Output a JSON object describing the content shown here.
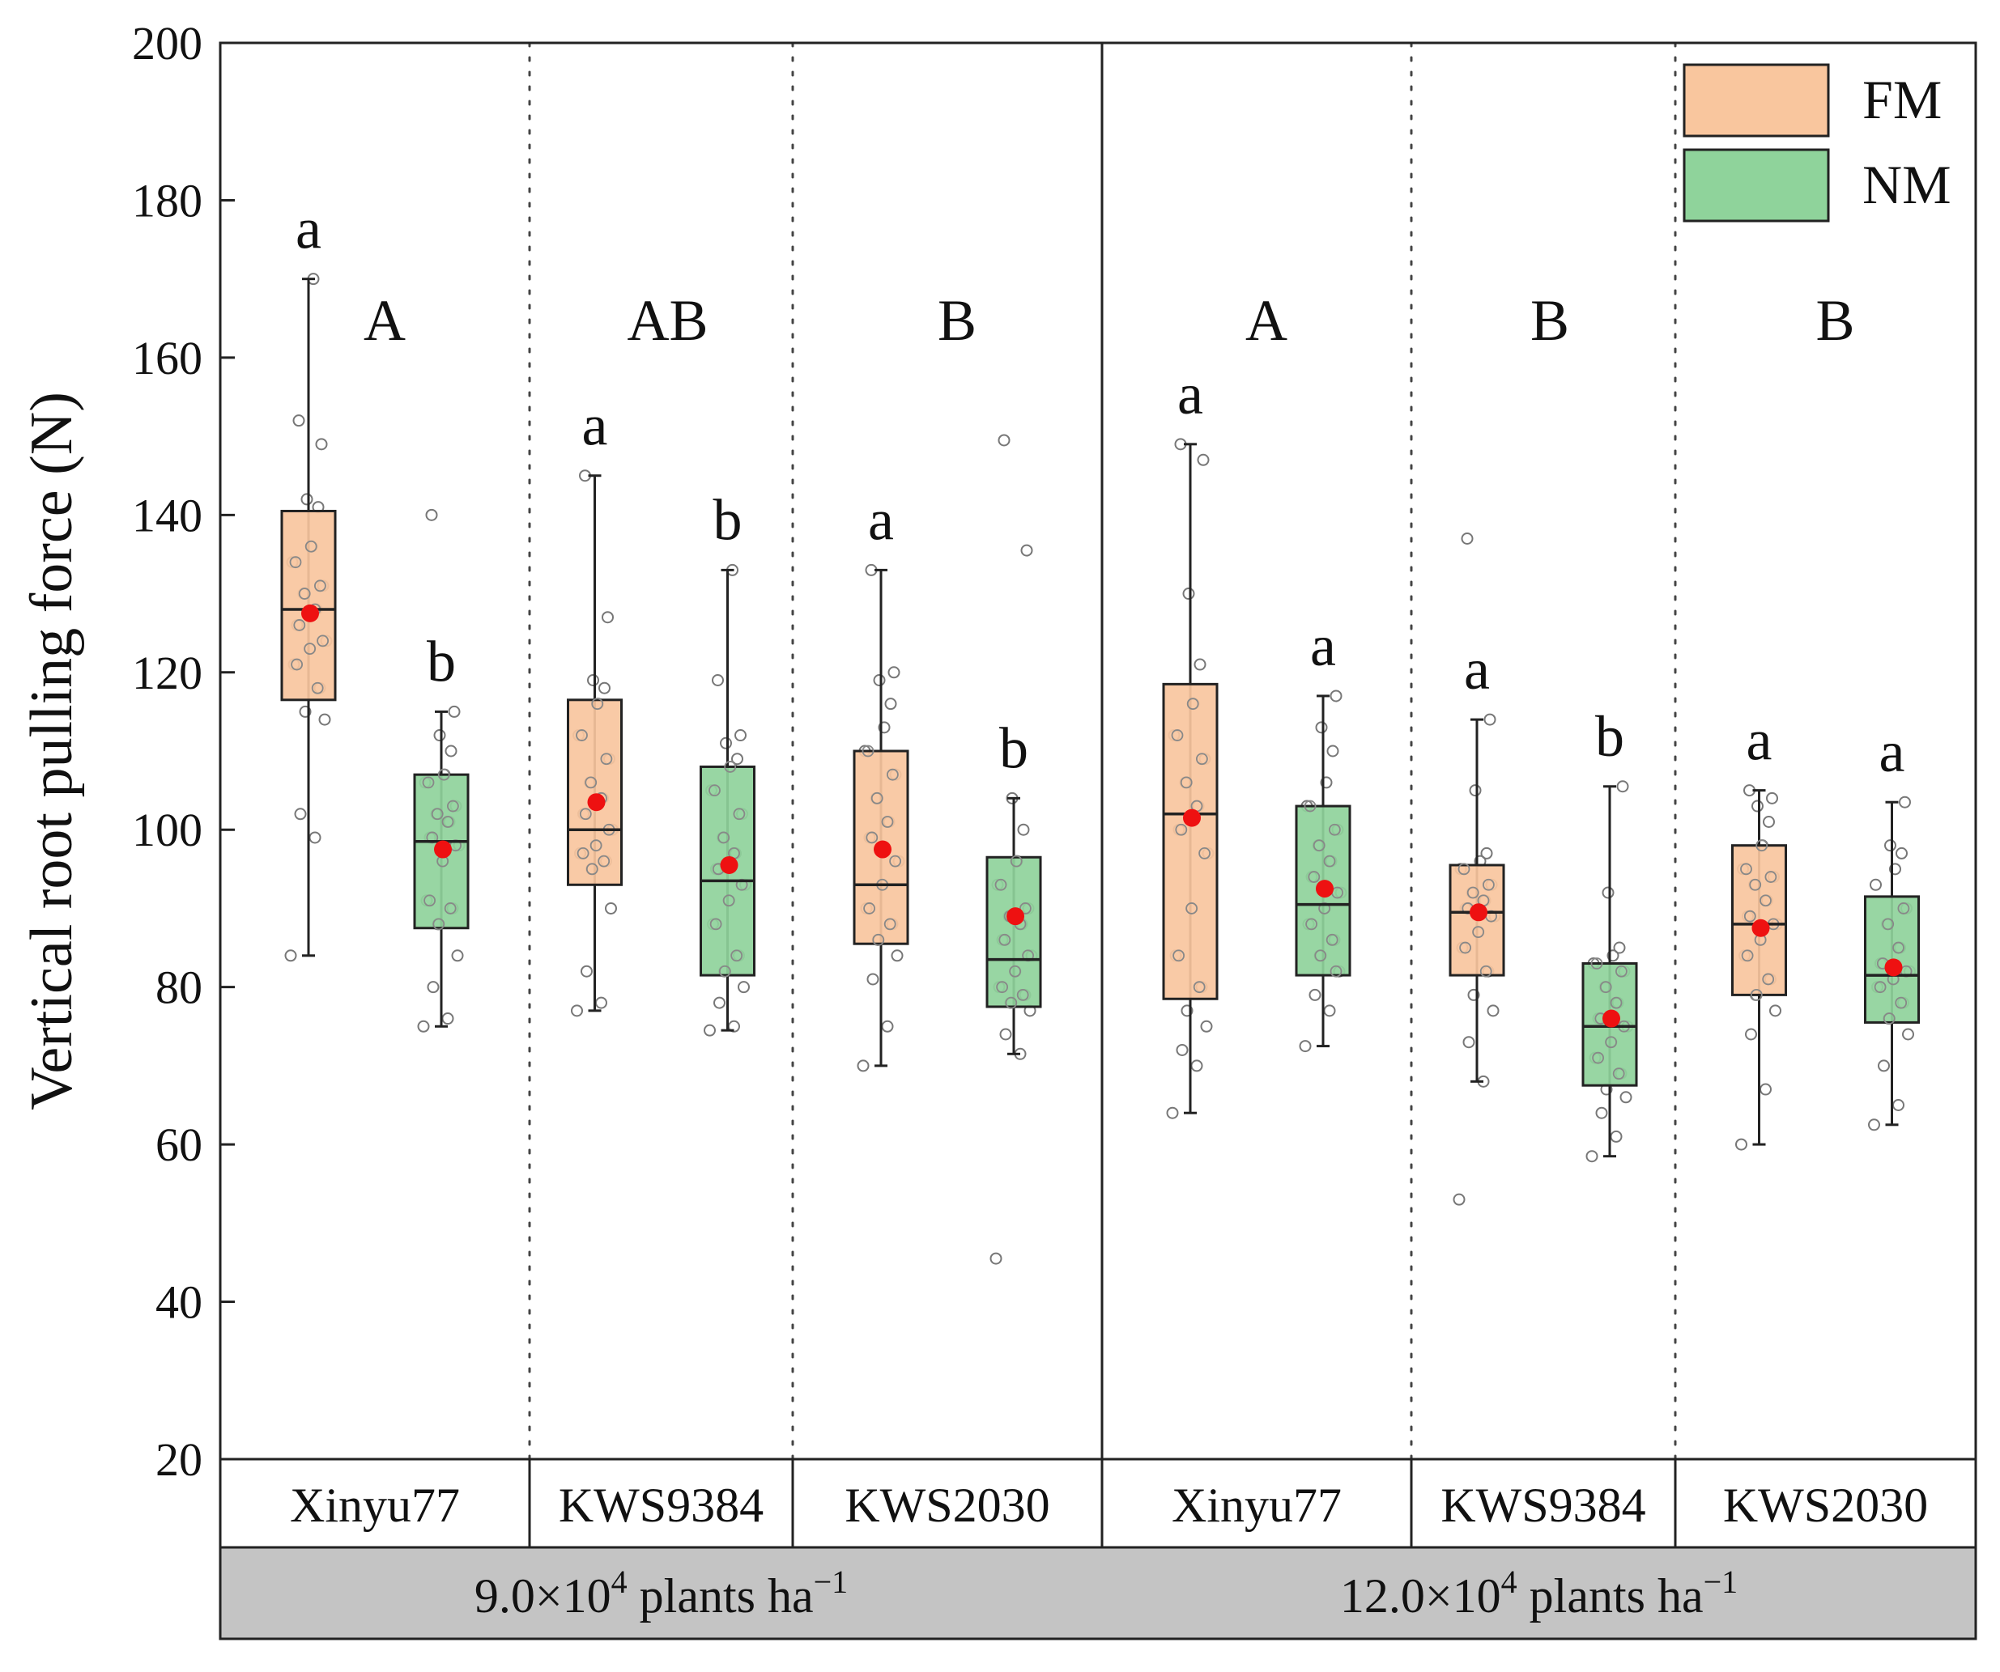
{
  "chart_data": {
    "type": "box",
    "ylabel": "Vertical root pulling force (N)",
    "ylim": [
      20,
      200
    ],
    "yticks": [
      20,
      40,
      60,
      80,
      100,
      120,
      140,
      160,
      180,
      200
    ],
    "legend": {
      "position": "top-right",
      "entries": [
        {
          "key": "FM",
          "label": "FM",
          "color": "#f9c69e"
        },
        {
          "key": "NM",
          "label": "NM",
          "color": "#8fd39b"
        }
      ]
    },
    "colors": {
      "mean_dot": "#ee1111",
      "box_border": "#222222",
      "band_fill": "#c4c4c4"
    },
    "densities": [
      {
        "label_base": "9.0×10",
        "label_exp": "4",
        "label_unit": " plants ha",
        "label_unit_exp": "−1"
      },
      {
        "label_base": "12.0×10",
        "label_exp": "4",
        "label_unit": " plants ha",
        "label_unit_exp": "−1"
      }
    ],
    "groups": [
      {
        "density": 0,
        "cultivar": "Xinyu77",
        "group_letter": "A",
        "FM": {
          "min": 84,
          "q1": 116.5,
          "median": 128,
          "q3": 140.5,
          "max": 170,
          "mean": 127.5,
          "letter": "a",
          "points": [
            84,
            99,
            102,
            114,
            115,
            118,
            121,
            123,
            124,
            126,
            128,
            130,
            131,
            134,
            136,
            141,
            142,
            149,
            152,
            170
          ]
        },
        "NM": {
          "min": 75,
          "q1": 87.5,
          "median": 98.5,
          "q3": 107,
          "max": 115,
          "mean": 97.5,
          "letter": "b",
          "points": [
            75,
            76,
            80,
            84,
            88,
            90,
            91,
            96,
            98,
            99,
            101,
            102,
            103,
            106,
            107,
            110,
            112,
            115,
            140
          ]
        }
      },
      {
        "density": 0,
        "cultivar": "KWS9384",
        "group_letter": "AB",
        "FM": {
          "min": 77,
          "q1": 93,
          "median": 100,
          "q3": 116.5,
          "max": 145,
          "mean": 103.5,
          "letter": "a",
          "points": [
            77,
            78,
            82,
            90,
            95,
            96,
            97,
            98,
            100,
            102,
            104,
            106,
            109,
            112,
            116,
            118,
            119,
            127,
            145
          ]
        },
        "NM": {
          "min": 74.5,
          "q1": 81.5,
          "median": 93.5,
          "q3": 108,
          "max": 133,
          "mean": 95.5,
          "letter": "b",
          "points": [
            74.5,
            75,
            78,
            80,
            82,
            84,
            88,
            91,
            93,
            95,
            97,
            99,
            102,
            105,
            108,
            109,
            111,
            112,
            119,
            133
          ]
        }
      },
      {
        "density": 0,
        "cultivar": "KWS2030",
        "group_letter": "B",
        "FM": {
          "min": 70,
          "q1": 85.5,
          "median": 93,
          "q3": 110,
          "max": 133,
          "mean": 97.5,
          "letter": "a",
          "points": [
            70,
            75,
            81,
            84,
            86,
            88,
            90,
            93,
            96,
            99,
            101,
            104,
            107,
            110,
            113,
            116,
            119,
            120,
            133
          ]
        },
        "NM": {
          "min": 71.5,
          "q1": 77.5,
          "median": 83.5,
          "q3": 96.5,
          "max": 104,
          "mean": 89,
          "letter": "b",
          "points": [
            45.5,
            71.5,
            74,
            77,
            78,
            79,
            80,
            82,
            84,
            86,
            88,
            89,
            90,
            93,
            96,
            100,
            104,
            135.5,
            149.5
          ]
        }
      },
      {
        "density": 1,
        "cultivar": "Xinyu77",
        "group_letter": "A",
        "FM": {
          "min": 64,
          "q1": 78.5,
          "median": 102,
          "q3": 118.5,
          "max": 149,
          "mean": 101.5,
          "letter": "a",
          "points": [
            64,
            70,
            72,
            75,
            77,
            80,
            84,
            90,
            97,
            100,
            103,
            106,
            109,
            112,
            116,
            121,
            130,
            147,
            149
          ]
        },
        "NM": {
          "min": 72.5,
          "q1": 81.5,
          "median": 90.5,
          "q3": 103,
          "max": 117,
          "mean": 92.5,
          "letter": "a",
          "points": [
            72.5,
            77,
            79,
            82,
            84,
            86,
            88,
            90,
            92,
            94,
            96,
            98,
            100,
            103,
            106,
            110,
            113,
            117
          ]
        }
      },
      {
        "density": 1,
        "cultivar": "KWS9384",
        "group_letter": "B",
        "FM": {
          "min": 68,
          "q1": 81.5,
          "median": 89.5,
          "q3": 95.5,
          "max": 114,
          "mean": 89.5,
          "letter": "a",
          "points": [
            53,
            68,
            73,
            77,
            79,
            82,
            85,
            87,
            89,
            90,
            91,
            92,
            93,
            95,
            96,
            97,
            105,
            114,
            137
          ]
        },
        "NM": {
          "min": 58.5,
          "q1": 67.5,
          "median": 75,
          "q3": 83,
          "max": 105.5,
          "mean": 76,
          "letter": "b",
          "points": [
            58.5,
            61,
            64,
            66,
            67,
            69,
            71,
            73,
            75,
            76,
            78,
            80,
            82,
            83,
            84,
            85,
            92,
            105.5
          ]
        }
      },
      {
        "density": 1,
        "cultivar": "KWS2030",
        "group_letter": "B",
        "FM": {
          "min": 60,
          "q1": 79,
          "median": 88,
          "q3": 98,
          "max": 105,
          "mean": 87.5,
          "letter": "a",
          "points": [
            60,
            67,
            74,
            77,
            79,
            81,
            84,
            86,
            88,
            89,
            91,
            93,
            94,
            95,
            98,
            101,
            103,
            104,
            105
          ]
        },
        "NM": {
          "min": 62.5,
          "q1": 75.5,
          "median": 81.5,
          "q3": 91.5,
          "max": 103.5,
          "mean": 82.5,
          "letter": "a",
          "points": [
            62.5,
            65,
            70,
            74,
            76,
            78,
            80,
            81,
            82,
            83,
            85,
            88,
            90,
            93,
            95,
            97,
            98,
            103.5
          ]
        }
      }
    ]
  }
}
